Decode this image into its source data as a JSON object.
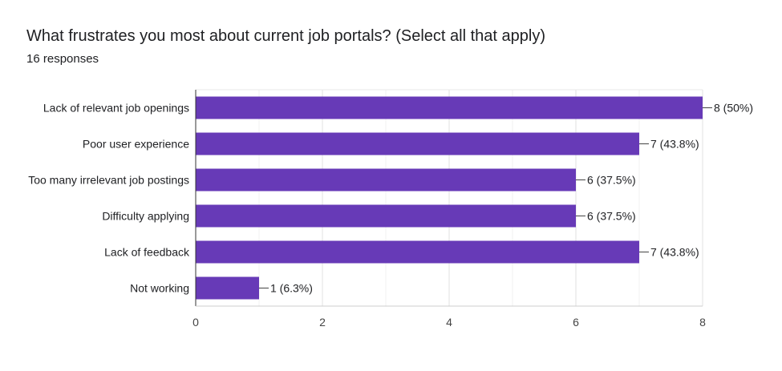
{
  "chart_data": {
    "type": "bar",
    "orientation": "horizontal",
    "title": "What frustrates you most about current job portals? (Select all that apply)",
    "subtitle": "16 responses",
    "categories": [
      "Lack of relevant job openings",
      "Poor user experience",
      "Too many irrelevant job postings",
      "Difficulty applying",
      "Lack of feedback",
      "Not working"
    ],
    "values": [
      8,
      7,
      6,
      6,
      7,
      1
    ],
    "data_labels": [
      "8 (50%)",
      "7 (43.8%)",
      "6 (37.5%)",
      "6 (37.5%)",
      "7 (43.8%)",
      "1 (6.3%)"
    ],
    "xlim": [
      0,
      8
    ],
    "x_ticks": [
      0,
      2,
      4,
      6,
      8
    ],
    "x_tick_labels": [
      "0",
      "2",
      "4",
      "6",
      "8"
    ],
    "grid": true,
    "bar_color": "#673ab7"
  }
}
